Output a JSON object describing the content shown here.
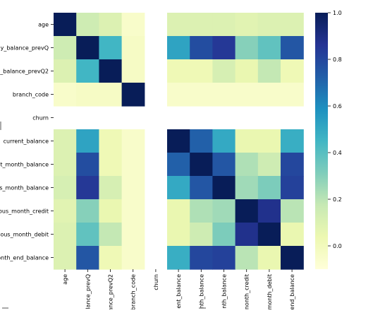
{
  "chart_data": {
    "type": "heatmap",
    "row_labels": [
      "age",
      "nly_balance_prevQ",
      "y_balance_prevQ2",
      "branch_code",
      "churn",
      "current_balance",
      "nt_month_balance",
      "us_month_balance",
      "ious_month_credit",
      "vious_month_debit",
      "onth_end_balance"
    ],
    "col_labels": [
      "age",
      "lance_prevQ",
      "ance_prevQ2",
      "branch_code",
      "churn",
      "ent_balance",
      "nth_balance",
      "nth_balance",
      "nonth_credit",
      "month_debit",
      "end_balance"
    ],
    "values": [
      [
        1.0,
        0.15,
        0.1,
        -0.05,
        null,
        0.1,
        0.1,
        0.1,
        0.08,
        0.1,
        0.1
      ],
      [
        0.15,
        1.0,
        0.45,
        -0.03,
        null,
        0.52,
        0.78,
        0.85,
        0.3,
        0.38,
        0.75
      ],
      [
        0.1,
        0.45,
        1.0,
        -0.03,
        null,
        0.02,
        0.02,
        0.12,
        0.05,
        0.18,
        0.02
      ],
      [
        -0.05,
        -0.03,
        -0.03,
        1.0,
        null,
        -0.05,
        -0.05,
        -0.05,
        -0.05,
        -0.05,
        -0.05
      ],
      [
        null,
        null,
        null,
        null,
        null,
        null,
        null,
        null,
        null,
        null,
        null
      ],
      [
        0.1,
        0.52,
        0.02,
        -0.05,
        null,
        1.0,
        0.72,
        0.5,
        0.05,
        0.05,
        0.48
      ],
      [
        0.1,
        0.78,
        0.02,
        -0.05,
        null,
        0.72,
        1.0,
        0.75,
        0.22,
        0.15,
        0.8
      ],
      [
        0.12,
        0.85,
        0.12,
        -0.05,
        null,
        0.5,
        0.75,
        1.0,
        0.25,
        0.32,
        0.82
      ],
      [
        0.08,
        0.3,
        0.05,
        -0.05,
        null,
        0.05,
        0.22,
        0.25,
        1.0,
        0.88,
        0.2
      ],
      [
        0.1,
        0.38,
        0.18,
        -0.05,
        null,
        0.05,
        0.15,
        0.32,
        0.88,
        1.0,
        0.05
      ],
      [
        0.1,
        0.75,
        0.02,
        -0.05,
        null,
        0.48,
        0.8,
        0.82,
        0.2,
        0.05,
        1.0
      ]
    ],
    "colormap": "YlGnBu",
    "vmin": -0.1,
    "vmax": 1.0,
    "colorbar_ticks": [
      "1.0",
      "0.8",
      "0.6",
      "0.4",
      "0.2",
      "0.0"
    ],
    "colorbar_tick_values": [
      1.0,
      0.8,
      0.6,
      0.4,
      0.2,
      0.0
    ],
    "title": "",
    "xlabel": "",
    "ylabel": "",
    "grid": false
  }
}
